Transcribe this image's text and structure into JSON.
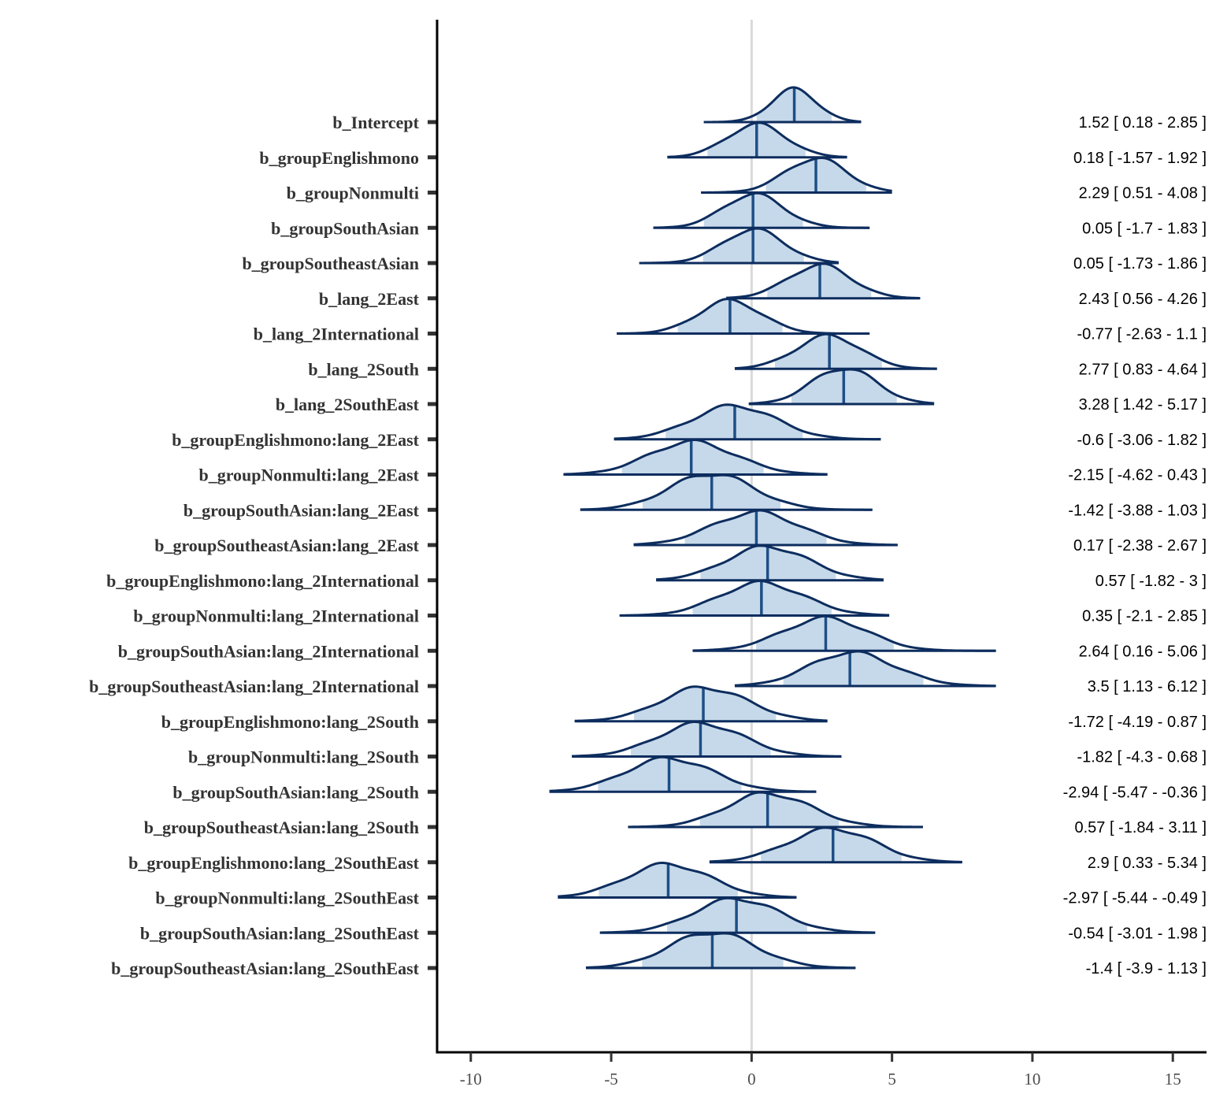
{
  "chart_data": {
    "type": "area",
    "subtype": "posterior-density-ridges",
    "title": "",
    "xlabel": "",
    "ylabel": "",
    "xlim": [
      -11.2,
      16.2
    ],
    "x_ticks": [
      -10,
      -5,
      0,
      5,
      10,
      15
    ],
    "x_tick_labels": [
      "-10",
      "-5",
      "0",
      "5",
      "10",
      "15"
    ],
    "reference_line_x": 0,
    "grid": false,
    "legend": "none",
    "colors": {
      "line": "#0d2d5e",
      "fill": "#c6d9ea",
      "median": "#1d4f86",
      "reference": "#d9d9d9",
      "axis": "#000000"
    },
    "series": [
      {
        "name": "b_Intercept",
        "median": 1.52,
        "lower": 0.18,
        "upper": 2.85,
        "min": -1.7,
        "max": 3.9,
        "label": "1.52 [ 0.18 - 2.85 ]"
      },
      {
        "name": "b_groupEnglishmono",
        "median": 0.18,
        "lower": -1.57,
        "upper": 1.92,
        "min": -3.0,
        "max": 3.4,
        "label": "0.18 [ -1.57 - 1.92 ]"
      },
      {
        "name": "b_groupNonmulti",
        "median": 2.29,
        "lower": 0.51,
        "upper": 4.08,
        "min": -1.8,
        "max": 5.0,
        "label": "2.29 [ 0.51 - 4.08 ]"
      },
      {
        "name": "b_groupSouthAsian",
        "median": 0.05,
        "lower": -1.7,
        "upper": 1.83,
        "min": -3.5,
        "max": 4.2,
        "label": "0.05 [ -1.7 - 1.83 ]"
      },
      {
        "name": "b_groupSoutheastAsian",
        "median": 0.05,
        "lower": -1.73,
        "upper": 1.86,
        "min": -4.0,
        "max": 3.1,
        "label": "0.05 [ -1.73 - 1.86 ]"
      },
      {
        "name": "b_lang_2East",
        "median": 2.43,
        "lower": 0.56,
        "upper": 4.26,
        "min": -0.9,
        "max": 6.0,
        "label": "2.43 [ 0.56 - 4.26 ]"
      },
      {
        "name": "b_lang_2International",
        "median": -0.77,
        "lower": -2.63,
        "upper": 1.1,
        "min": -4.8,
        "max": 4.2,
        "label": "-0.77 [ -2.63 - 1.1 ]"
      },
      {
        "name": "b_lang_2South",
        "median": 2.77,
        "lower": 0.83,
        "upper": 4.64,
        "min": -0.6,
        "max": 6.6,
        "label": "2.77 [ 0.83 - 4.64 ]"
      },
      {
        "name": "b_lang_2SouthEast",
        "median": 3.28,
        "lower": 1.42,
        "upper": 5.17,
        "min": -0.1,
        "max": 6.5,
        "label": "3.28 [ 1.42 - 5.17 ]"
      },
      {
        "name": "b_groupEnglishmono:lang_2East",
        "median": -0.6,
        "lower": -3.06,
        "upper": 1.82,
        "min": -4.9,
        "max": 4.6,
        "label": "-0.6 [ -3.06 - 1.82 ]"
      },
      {
        "name": "b_groupNonmulti:lang_2East",
        "median": -2.15,
        "lower": -4.62,
        "upper": 0.43,
        "min": -6.7,
        "max": 2.7,
        "label": "-2.15 [ -4.62 - 0.43 ]"
      },
      {
        "name": "b_groupSouthAsian:lang_2East",
        "median": -1.42,
        "lower": -3.88,
        "upper": 1.03,
        "min": -6.1,
        "max": 4.3,
        "label": "-1.42 [ -3.88 - 1.03 ]"
      },
      {
        "name": "b_groupSoutheastAsian:lang_2East",
        "median": 0.17,
        "lower": -2.38,
        "upper": 2.67,
        "min": -4.2,
        "max": 5.2,
        "label": "0.17 [ -2.38 - 2.67 ]"
      },
      {
        "name": "b_groupEnglishmono:lang_2International",
        "median": 0.57,
        "lower": -1.82,
        "upper": 3,
        "min": -3.4,
        "max": 4.7,
        "label": "0.57 [ -1.82 - 3 ]"
      },
      {
        "name": "b_groupNonmulti:lang_2International",
        "median": 0.35,
        "lower": -2.1,
        "upper": 2.85,
        "min": -4.7,
        "max": 4.9,
        "label": "0.35 [ -2.1 - 2.85 ]"
      },
      {
        "name": "b_groupSouthAsian:lang_2International",
        "median": 2.64,
        "lower": 0.16,
        "upper": 5.06,
        "min": -2.1,
        "max": 8.7,
        "label": "2.64 [ 0.16 - 5.06 ]"
      },
      {
        "name": "b_groupSoutheastAsian:lang_2International",
        "median": 3.5,
        "lower": 1.13,
        "upper": 6.12,
        "min": -0.6,
        "max": 8.7,
        "label": "3.5 [ 1.13 - 6.12 ]"
      },
      {
        "name": "b_groupEnglishmono:lang_2South",
        "median": -1.72,
        "lower": -4.19,
        "upper": 0.87,
        "min": -6.3,
        "max": 2.7,
        "label": "-1.72 [ -4.19 - 0.87 ]"
      },
      {
        "name": "b_groupNonmulti:lang_2South",
        "median": -1.82,
        "lower": -4.3,
        "upper": 0.68,
        "min": -6.4,
        "max": 3.2,
        "label": "-1.82 [ -4.3 - 0.68 ]"
      },
      {
        "name": "b_groupSouthAsian:lang_2South",
        "median": -2.94,
        "lower": -5.47,
        "upper": -0.36,
        "min": -7.2,
        "max": 2.3,
        "label": "-2.94 [ -5.47 - -0.36 ]"
      },
      {
        "name": "b_groupSoutheastAsian:lang_2South",
        "median": 0.57,
        "lower": -1.84,
        "upper": 3.11,
        "min": -4.4,
        "max": 6.1,
        "label": "0.57 [ -1.84 - 3.11 ]"
      },
      {
        "name": "b_groupEnglishmono:lang_2SouthEast",
        "median": 2.9,
        "lower": 0.33,
        "upper": 5.34,
        "min": -1.5,
        "max": 7.5,
        "label": "2.9 [ 0.33 - 5.34 ]"
      },
      {
        "name": "b_groupNonmulti:lang_2SouthEast",
        "median": -2.97,
        "lower": -5.44,
        "upper": -0.49,
        "min": -6.9,
        "max": 1.6,
        "label": "-2.97 [ -5.44 - -0.49 ]"
      },
      {
        "name": "b_groupSouthAsian:lang_2SouthEast",
        "median": -0.54,
        "lower": -3.01,
        "upper": 1.98,
        "min": -5.4,
        "max": 4.4,
        "label": "-0.54 [ -3.01 - 1.98 ]"
      },
      {
        "name": "b_groupSoutheastAsian:lang_2SouthEast",
        "median": -1.4,
        "lower": -3.9,
        "upper": 1.13,
        "min": -5.9,
        "max": 3.7,
        "label": "-1.4 [ -3.9 - 1.13 ]"
      }
    ]
  }
}
